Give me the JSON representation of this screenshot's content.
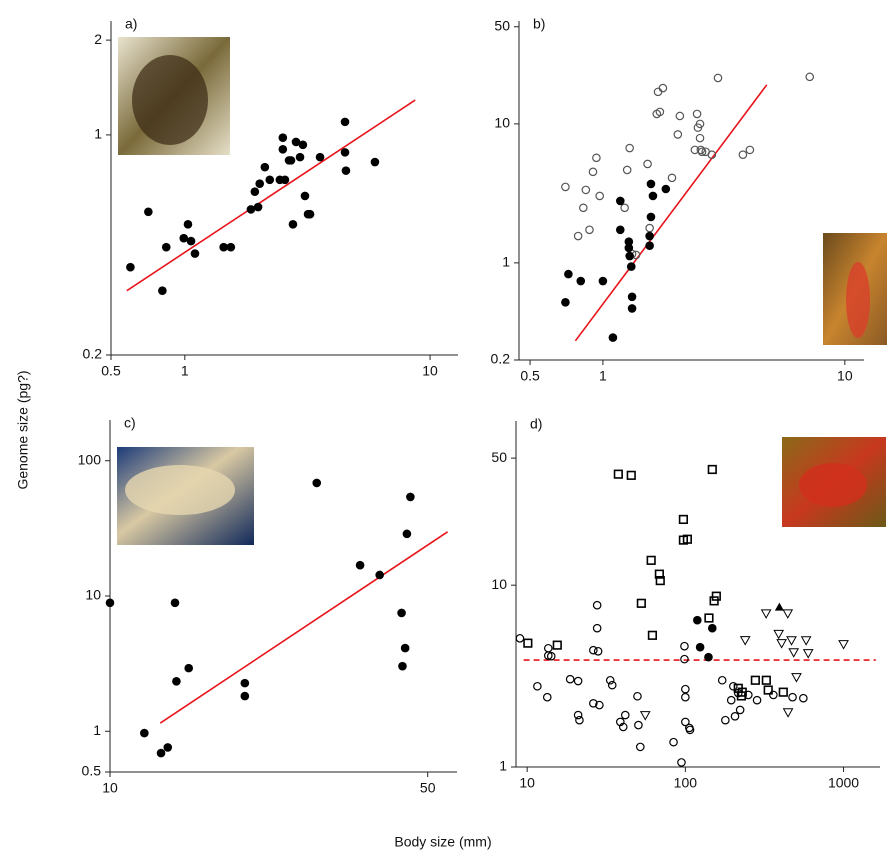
{
  "y_label": "Genome size (pg?)",
  "x_label": "Body size (mm)",
  "chart_data": [
    {
      "type": "scatter",
      "title": "a)",
      "log_x": true,
      "log_y": true,
      "xlim": [
        0.5,
        13
      ],
      "ylim": [
        0.2,
        2.3
      ],
      "xticks": [
        0.5,
        1,
        10
      ],
      "yticks": [
        0.2,
        1,
        2
      ],
      "series": [
        {
          "marker": "filled-circle",
          "color": "#000000",
          "x": [
            0.6,
            0.71,
            0.81,
            0.84,
            0.99,
            1.03,
            1.06,
            1.1,
            1.44,
            1.54,
            1.86,
            1.99,
            1.93,
            2.02,
            2.12,
            2.22,
            2.44,
            2.56,
            2.51,
            2.51,
            2.66,
            2.71,
            2.76,
            2.84,
            2.95,
            3.03,
            3.09,
            3.18,
            3.24,
            3.56,
            4.5,
            4.5,
            4.54,
            5.96
          ],
          "y": [
            0.38,
            0.57,
            0.32,
            0.44,
            0.47,
            0.52,
            0.46,
            0.42,
            0.44,
            0.44,
            0.58,
            0.59,
            0.66,
            0.7,
            0.79,
            0.72,
            0.72,
            0.72,
            0.9,
            0.98,
            0.83,
            0.83,
            0.52,
            0.95,
            0.85,
            0.93,
            0.64,
            0.56,
            0.56,
            0.85,
            1.1,
            0.88,
            0.77,
            0.82
          ]
        }
      ],
      "lines": [
        {
          "color": "#e8141b",
          "dash": false,
          "x": [
            0.58,
            8.7
          ],
          "y": [
            0.32,
            1.29
          ]
        }
      ]
    },
    {
      "type": "scatter",
      "title": "b)",
      "log_x": true,
      "log_y": true,
      "xlim": [
        0.45,
        12
      ],
      "ylim": [
        0.2,
        55
      ],
      "xticks": [
        0.5,
        1,
        10
      ],
      "yticks": [
        0.2,
        1,
        10,
        50
      ],
      "series": [
        {
          "marker": "open-circle",
          "color": "#555555",
          "x": [
            0.7,
            0.79,
            0.83,
            0.85,
            0.88,
            0.91,
            0.94,
            0.97,
            1.23,
            1.26,
            1.29,
            1.32,
            1.37,
            1.56,
            1.53,
            1.67,
            1.72,
            1.69,
            1.77,
            1.93,
            2.04,
            2.08,
            2.4,
            2.45,
            2.47,
            2.52,
            2.52,
            2.54,
            2.57,
            2.66,
            2.82,
            2.99,
            3.79,
            4.05,
            7.16
          ],
          "y": [
            3.52,
            1.56,
            2.49,
            3.35,
            1.73,
            4.52,
            5.7,
            3.03,
            2.49,
            4.66,
            6.7,
            1.16,
            1.14,
            1.78,
            5.15,
            11.8,
            12.2,
            17.0,
            18.1,
            4.09,
            8.4,
            11.4,
            6.5,
            11.8,
            9.4,
            7.9,
            10.0,
            6.5,
            6.3,
            6.3,
            6.0,
            21.4,
            6.0,
            6.5,
            21.8
          ]
        },
        {
          "marker": "filled-circle",
          "color": "#000000",
          "x": [
            0.7,
            0.72,
            0.81,
            1.0,
            1.1,
            1.18,
            1.18,
            1.28,
            1.28,
            1.29,
            1.31,
            1.32,
            1.32,
            1.56,
            1.58,
            1.56,
            1.58,
            1.61,
            1.82
          ],
          "y": [
            0.52,
            0.83,
            0.74,
            0.74,
            0.29,
            2.79,
            1.73,
            1.42,
            1.28,
            1.12,
            0.94,
            0.57,
            0.47,
            1.56,
            2.14,
            1.33,
            3.7,
            3.03,
            3.4
          ]
        }
      ],
      "lines": [
        {
          "color": "#e8141b",
          "dash": false,
          "x": [
            0.77,
            4.76
          ],
          "y": [
            0.275,
            19.1
          ]
        }
      ]
    },
    {
      "type": "scatter",
      "title": "c)",
      "log_x": true,
      "log_y": true,
      "xlim": [
        10,
        58
      ],
      "ylim": [
        0.5,
        200
      ],
      "xticks": [
        10,
        50
      ],
      "yticks": [
        0.5,
        1,
        10,
        100
      ],
      "series": [
        {
          "marker": "filled-circle",
          "color": "#000000",
          "x": [
            10,
            11.9,
            12.95,
            13.4,
            13.9,
            14.0,
            14.9,
            19.8,
            19.8,
            28.5,
            35.5,
            39.2,
            43.8,
            44.0,
            44.6,
            45.0,
            45.8
          ],
          "y": [
            8.9,
            0.97,
            0.69,
            0.76,
            8.9,
            2.34,
            2.93,
            2.27,
            1.82,
            68.5,
            16.9,
            14.3,
            7.5,
            3.03,
            4.12,
            28.8,
            54
          ]
        }
      ],
      "lines": [
        {
          "color": "#e8141b",
          "dash": false,
          "x": [
            12.9,
            55.3
          ],
          "y": [
            1.15,
            29.8
          ]
        }
      ]
    },
    {
      "type": "scatter",
      "title": "d)",
      "log_x": true,
      "log_y": true,
      "xlim": [
        8.5,
        1700
      ],
      "ylim": [
        1,
        80
      ],
      "xticks": [
        10,
        100,
        1000
      ],
      "yticks": [
        1,
        10,
        50
      ],
      "series": [
        {
          "marker": "open-circle",
          "color": "#000000",
          "x": [
            9,
            11.6,
            13.4,
            13.6,
            13.6,
            14.2,
            18.7,
            21,
            21,
            21.4,
            26.2,
            26.2,
            27.7,
            27.7,
            28.1,
            28.6,
            33.5,
            34.5,
            38.8,
            40.5,
            41.7,
            49.8,
            50.5,
            51.9,
            84.2,
            94.5,
            98.7,
            98.7,
            100,
            100,
            100,
            106,
            107,
            171,
            195,
            201,
            216,
            250,
            284,
            360,
            476,
            557,
            206,
            222,
            179
          ],
          "y": [
            5.1,
            2.78,
            2.42,
            4.5,
            4.1,
            4.07,
            3.04,
            2.97,
            1.93,
            1.81,
            4.39,
            2.24,
            7.76,
            5.8,
            4.33,
            2.19,
            3.0,
            2.82,
            1.77,
            1.66,
            1.93,
            2.45,
            1.7,
            1.29,
            1.37,
            1.06,
            4.62,
            3.92,
            2.68,
            2.42,
            1.77,
            1.64,
            1.6,
            3.0,
            2.33,
            2.78,
            2.55,
            2.49,
            2.33,
            2.49,
            2.42,
            2.39,
            1.9,
            2.06,
            1.81
          ]
        },
        {
          "marker": "open-square",
          "color": "#000000",
          "x": [
            10.1,
            15.5,
            37.7,
            45.5,
            52.7,
            60.8,
            68.5,
            69.4,
            61.9,
            97.2,
            97.2,
            103,
            148,
            157,
            152,
            141,
            216,
            229,
            226,
            277,
            325,
            334,
            416
          ],
          "y": [
            4.8,
            4.68,
            40.8,
            40.2,
            7.95,
            13.7,
            11.5,
            10.6,
            5.3,
            23.0,
            17.7,
            17.9,
            43.3,
            8.7,
            8.2,
            6.6,
            2.71,
            2.58,
            2.46,
            3.0,
            3.0,
            2.65,
            2.58
          ]
        },
        {
          "marker": "open-triangle-down",
          "color": "#000000",
          "x": [
            55.8,
            239,
            324,
            444,
            389,
            406,
            469,
            484,
            580,
            598,
            504,
            446,
            1000
          ],
          "y": [
            1.93,
            4.99,
            7.0,
            7.0,
            5.4,
            4.8,
            4.98,
            4.28,
            4.98,
            4.23,
            3.12,
            2.0,
            4.74
          ]
        },
        {
          "marker": "filled-triangle-up",
          "color": "#000000",
          "x": [
            393
          ],
          "y": [
            7.57
          ]
        },
        {
          "marker": "filled-circle",
          "color": "#000000",
          "x": [
            119,
            124,
            140,
            148
          ],
          "y": [
            6.42,
            4.56,
            4.02,
            5.8
          ]
        }
      ],
      "lines": [
        {
          "color": "#e8141b",
          "dash": true,
          "x": [
            9.5,
            1600
          ],
          "y": [
            3.87,
            3.87
          ]
        }
      ]
    }
  ]
}
